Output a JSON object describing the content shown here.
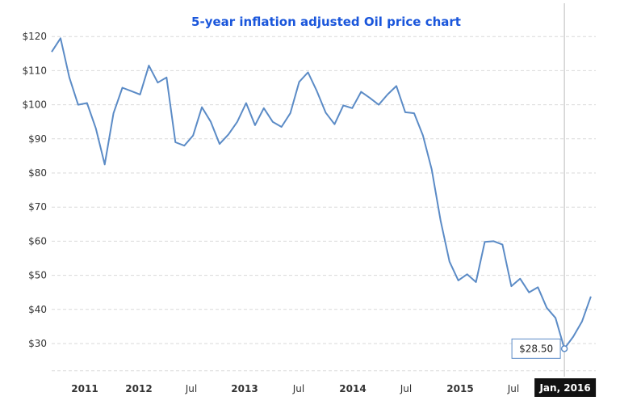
{
  "chart_data": {
    "type": "line",
    "title": "5-year inflation adjusted Oil price chart",
    "title_color": "#1a56db",
    "line_color": "#5b8bc6",
    "grid": true,
    "ylim": [
      20,
      122
    ],
    "yticks": [
      {
        "value": 30,
        "label": "$30"
      },
      {
        "value": 40,
        "label": "$40"
      },
      {
        "value": 50,
        "label": "$50"
      },
      {
        "value": 60,
        "label": "$60"
      },
      {
        "value": 70,
        "label": "$70"
      },
      {
        "value": 80,
        "label": "$80"
      },
      {
        "value": 90,
        "label": "$90"
      },
      {
        "value": 100,
        "label": "$100"
      },
      {
        "value": 110,
        "label": "$110"
      },
      {
        "value": 120,
        "label": "$120"
      }
    ],
    "xticks": [
      {
        "label": "2011",
        "major": true
      },
      {
        "label": "2012",
        "major": true
      },
      {
        "label": "Jul",
        "major": false
      },
      {
        "label": "2013",
        "major": true
      },
      {
        "label": "Jul",
        "major": false
      },
      {
        "label": "2014",
        "major": true
      },
      {
        "label": "Jul",
        "major": false
      },
      {
        "label": "2015",
        "major": true
      },
      {
        "label": "Jul",
        "major": false
      }
    ],
    "series": [
      {
        "values": [
          115.5,
          119.5,
          108,
          100,
          100.5,
          93,
          82.5,
          97.5,
          105,
          104,
          103,
          111.5,
          106.5,
          108,
          89,
          88,
          91,
          99.3,
          95,
          88.5,
          91.3,
          95,
          100.5,
          94,
          99,
          95,
          93.5,
          97.5,
          106.7,
          109.5,
          104,
          97.7,
          94.3,
          99.8,
          99,
          103.8,
          102,
          100,
          103,
          105.5,
          97.8,
          97.5,
          91,
          81,
          66,
          54,
          48.5,
          50.3,
          48,
          59.8,
          60,
          59,
          46.8,
          49,
          45,
          46.5,
          40.5,
          37.5,
          28.5,
          32,
          36.5,
          43.8
        ]
      }
    ],
    "crosshair": {
      "label": "Jan, 2016",
      "value_label": "$28.50",
      "value": 28.5
    }
  }
}
